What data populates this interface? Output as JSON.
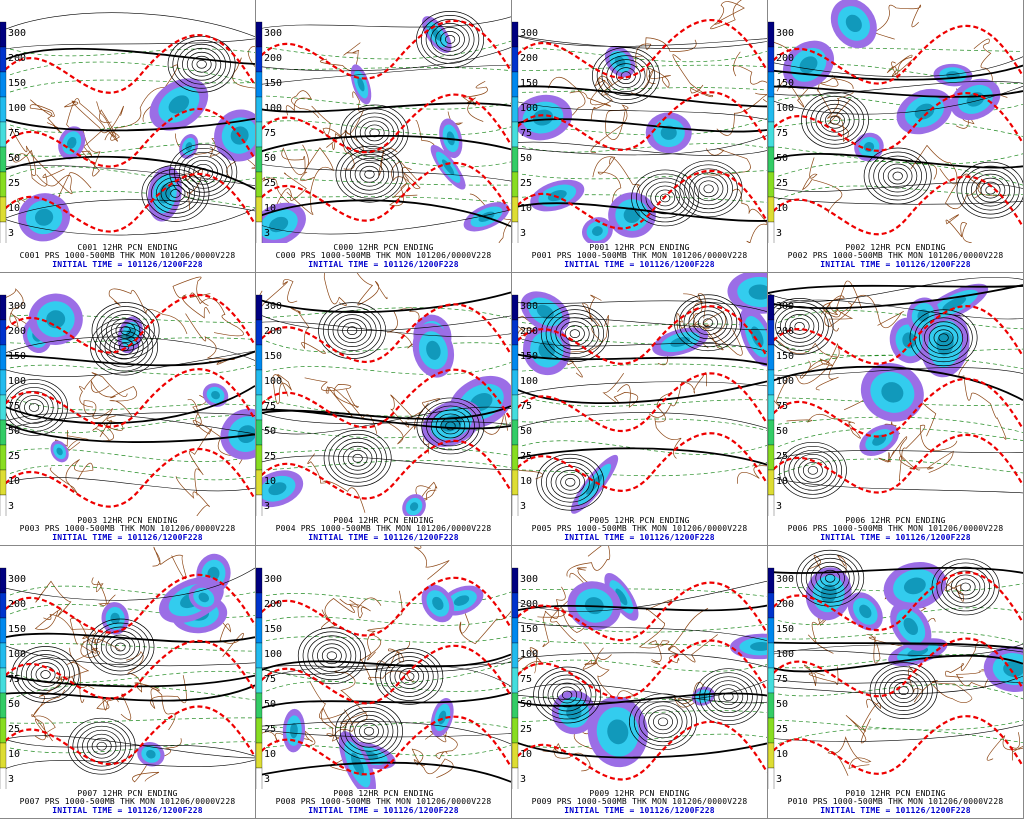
{
  "colorbar_labels": [
    "300",
    "200",
    "150",
    "100",
    "75",
    "50",
    "25",
    "10",
    "3"
  ],
  "panels": [
    {
      "title": "C001 12HR PCN ENDING",
      "subtitle": "C001 PRS 1000-500MB THK MON 101206/0000V228",
      "initial_time": "INITIAL TIME = 101126/1200F228"
    },
    {
      "title": "C000 12HR PCN ENDING",
      "subtitle": "C000 PRS 1000-500MB THK MON 101206/0000V228",
      "initial_time": "INITIAL TIME = 101126/1200F228"
    },
    {
      "title": "P001 12HR PCN ENDING",
      "subtitle": "P001 PRS 1000-500MB THK MON 101206/0000V228",
      "initial_time": "INITIAL TIME = 101126/1200F228"
    },
    {
      "title": "P002 12HR PCN ENDING",
      "subtitle": "P002 PRS 1000-500MB THK MON 101206/0000V228",
      "initial_time": "INITIAL TIME = 101126/1200F228"
    },
    {
      "title": "P003 12HR PCN ENDING",
      "subtitle": "P003 PRS 1000-500MB THK MON 101206/0000V228",
      "initial_time": "INITIAL TIME = 101126/1200F228"
    },
    {
      "title": "P004 12HR PCN ENDING",
      "subtitle": "P004 PRS 1000-500MB THK MON 101206/0000V228",
      "initial_time": "INITIAL TIME = 101126/1200F228"
    },
    {
      "title": "P005 12HR PCN ENDING",
      "subtitle": "P005 PRS 1000-500MB THK MON 101206/0000V228",
      "initial_time": "INITIAL TIME = 101126/1200F228"
    },
    {
      "title": "P006 12HR PCN ENDING",
      "subtitle": "P006 PRS 1000-500MB THK MON 101206/0000V228",
      "initial_time": "INITIAL TIME = 101126/1200F228"
    },
    {
      "title": "P007 12HR PCN ENDING",
      "subtitle": "P007 PRS 1000-500MB THK MON 101206/0000V228",
      "initial_time": "INITIAL TIME = 101126/1200F228"
    },
    {
      "title": "P008 12HR PCN ENDING",
      "subtitle": "P008 PRS 1000-500MB THK MON 101206/0000V228",
      "initial_time": "INITIAL TIME = 101126/1200F228"
    },
    {
      "title": "P009 12HR PCN ENDING",
      "subtitle": "P009 PRS 1000-500MB THK MON 101206/0000V228",
      "initial_time": "INITIAL TIME = 101126/1200F228"
    },
    {
      "title": "P010 12HR PCN ENDING",
      "subtitle": "P010 PRS 1000-500MB THK MON 101206/0000V228",
      "initial_time": "INITIAL TIME = 101126/1200F228"
    }
  ]
}
